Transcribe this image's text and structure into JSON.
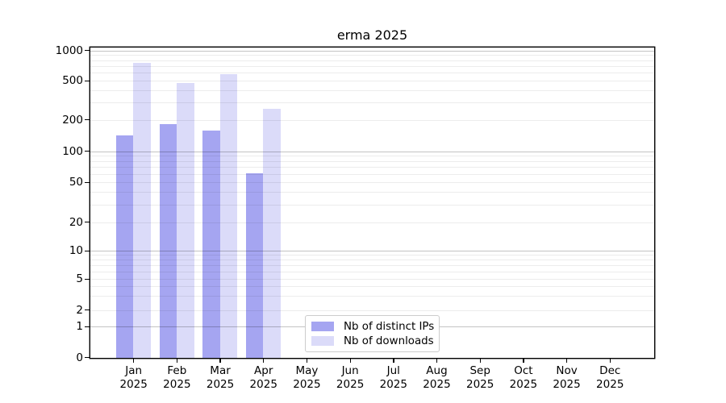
{
  "chart_data": {
    "type": "bar",
    "title": "erma 2025",
    "categories": [
      "Jan 2025",
      "Feb 2025",
      "Mar 2025",
      "Apr 2025",
      "May 2025",
      "Jun 2025",
      "Jul 2025",
      "Aug 2025",
      "Sep 2025",
      "Oct 2025",
      "Nov 2025",
      "Dec 2025"
    ],
    "series": [
      {
        "name": "Nb of distinct IPs",
        "color": "#a5a5f1",
        "values": [
          142,
          180,
          158,
          61,
          0,
          0,
          0,
          0,
          0,
          0,
          0,
          0
        ]
      },
      {
        "name": "Nb of downloads",
        "color": "#dbdbf9",
        "values": [
          748,
          474,
          578,
          256,
          0,
          0,
          0,
          0,
          0,
          0,
          0,
          0
        ]
      }
    ],
    "yscale": "symlog",
    "y_ticks": [
      0,
      1,
      2,
      5,
      10,
      20,
      50,
      100,
      200,
      500,
      1000
    ],
    "ylim": [
      0,
      1100
    ],
    "xlabel": "",
    "ylabel": "",
    "grid": true,
    "legend_position": "lower center",
    "colors": {
      "axis": "#000000",
      "major_grid": "#c3c3c3",
      "minor_grid": "#ececec",
      "legend_border": "#cccccc",
      "background": "#ffffff",
      "text": "#000000"
    }
  }
}
